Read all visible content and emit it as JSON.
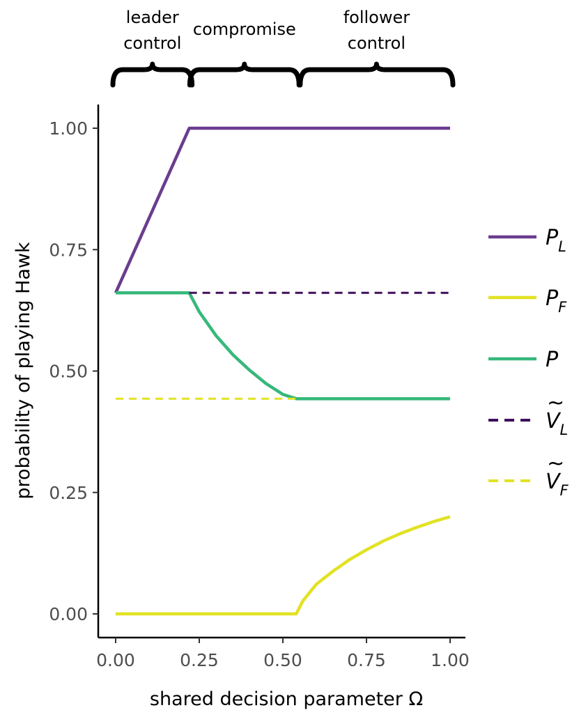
{
  "chart_data": {
    "type": "line",
    "title": "",
    "xlabel": "shared decision parameter Ω",
    "ylabel": "probability of playing Hawk",
    "xlim": [
      -0.05,
      1.05
    ],
    "ylim": [
      -0.05,
      1.05
    ],
    "x_ticks": [
      0,
      0.25,
      0.5,
      0.75,
      1
    ],
    "x_tick_labels": [
      "0.00",
      "0.25",
      "0.50",
      "0.75",
      "1.00"
    ],
    "y_ticks": [
      0,
      0.25,
      0.5,
      0.75,
      1
    ],
    "y_tick_labels": [
      "0.00",
      "0.25",
      "0.50",
      "0.75",
      "1.00"
    ],
    "grid": false,
    "legend_position": "right",
    "regions": [
      {
        "label_lines": [
          "leader",
          "control"
        ],
        "x_start": 0.0,
        "x_end": 0.22
      },
      {
        "label_lines": [
          "compromise"
        ],
        "x_start": 0.23,
        "x_end": 0.54
      },
      {
        "label_lines": [
          "follower",
          "control"
        ],
        "x_start": 0.56,
        "x_end": 1.0
      }
    ],
    "series": [
      {
        "name": "P_L",
        "legend_main": "P",
        "legend_sub": "L",
        "color": "#6a3d8f",
        "style": "solid",
        "x": [
          0.0,
          0.22,
          1.0
        ],
        "y": [
          0.661,
          1.0,
          1.0
        ]
      },
      {
        "name": "P_F",
        "legend_main": "P",
        "legend_sub": "F",
        "color": "#e2e223",
        "style": "solid",
        "x": [
          0.0,
          0.54,
          0.56,
          0.6,
          0.65,
          0.7,
          0.75,
          0.8,
          0.85,
          0.9,
          0.95,
          1.0
        ],
        "y": [
          0.0,
          0.0,
          0.027,
          0.061,
          0.088,
          0.112,
          0.132,
          0.15,
          0.165,
          0.178,
          0.19,
          0.2
        ]
      },
      {
        "name": "P",
        "legend_main": "P",
        "legend_sub": "",
        "color": "#36b87a",
        "style": "solid",
        "x": [
          0.0,
          0.22,
          0.25,
          0.3,
          0.35,
          0.4,
          0.45,
          0.5,
          0.54,
          1.0
        ],
        "y": [
          0.661,
          0.661,
          0.622,
          0.573,
          0.534,
          0.502,
          0.474,
          0.452,
          0.443,
          0.443
        ]
      },
      {
        "name": "Ṽ_L",
        "legend_main": "V",
        "legend_sub": "L",
        "tilde": true,
        "color": "#3f0f5c",
        "style": "dashed",
        "x": [
          0.22,
          1.0
        ],
        "y": [
          0.661,
          0.661
        ]
      },
      {
        "name": "Ṽ_F",
        "legend_main": "V",
        "legend_sub": "F",
        "tilde": true,
        "color": "#e2e223",
        "style": "dashed",
        "x": [
          0.0,
          0.54
        ],
        "y": [
          0.443,
          0.443
        ]
      }
    ]
  }
}
